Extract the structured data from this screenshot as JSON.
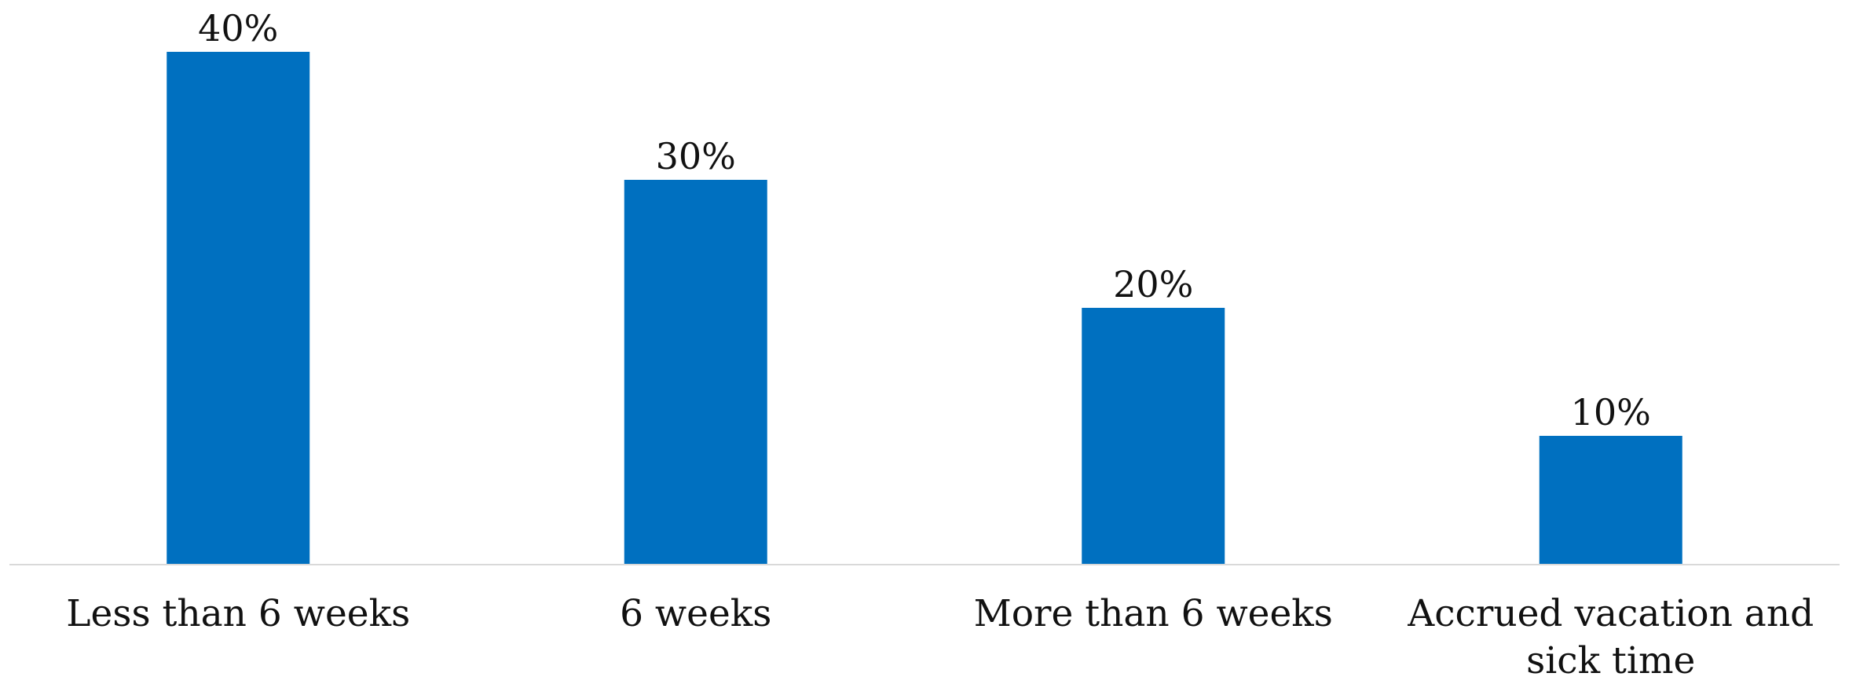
{
  "chart_data": {
    "type": "bar",
    "title": "",
    "xlabel": "",
    "ylabel": "",
    "categories": [
      [
        "Less than 6 weeks"
      ],
      [
        "6 weeks"
      ],
      [
        "More than 6 weeks"
      ],
      [
        "Accrued vacation and",
        "sick time"
      ]
    ],
    "values": [
      40,
      30,
      20,
      10
    ],
    "data_labels": [
      "40%",
      "30%",
      "20%",
      "10%"
    ],
    "unit": "%",
    "ylim": [
      0,
      40
    ],
    "grid": false,
    "legend": "none",
    "bar_color": "#0070C0",
    "axis_color": "#D9D9D9"
  }
}
